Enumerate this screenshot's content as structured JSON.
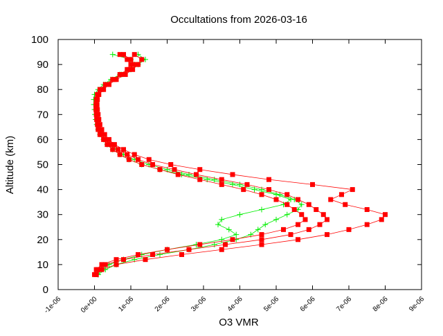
{
  "chart_data": {
    "type": "line",
    "title": "Occultations from 2026-03-16",
    "xlabel": "O3 VMR",
    "ylabel": "Altitude (km)",
    "xlim": [
      -1e-06,
      9e-06
    ],
    "ylim": [
      0,
      100
    ],
    "x_ticks": [
      "-1e-06",
      "0e+00",
      "1e-06",
      "2e-06",
      "3e-06",
      "4e-06",
      "5e-06",
      "6e-06",
      "7e-06",
      "8e-06",
      "9e-06"
    ],
    "y_ticks": [
      "0",
      "10",
      "20",
      "30",
      "40",
      "50",
      "60",
      "70",
      "80",
      "90",
      "100"
    ],
    "grid": false,
    "legend": "none",
    "x_unit_scale": 1e-06,
    "altitudes": [
      6,
      8,
      10,
      12,
      14,
      16,
      18,
      20,
      22,
      24,
      26,
      28,
      30,
      32,
      34,
      36,
      38,
      40,
      42,
      44,
      46,
      48,
      50,
      52,
      54,
      56,
      58,
      60,
      62,
      64,
      66,
      68,
      70,
      72,
      74,
      76,
      78,
      80,
      82,
      84,
      86,
      88,
      90,
      92,
      94
    ],
    "series": [
      {
        "color": "#00ee00",
        "marker": "plus",
        "profiles": [
          [
            0.1,
            0.2,
            0.4,
            0.8,
            1.3,
            2.0,
            2.8,
            3.5,
            3.9,
            3.7,
            3.4,
            3.5,
            4.0,
            4.6,
            5.2,
            5.4,
            5.0,
            4.4,
            3.8,
            3.1,
            2.4,
            1.8,
            1.3,
            0.95,
            0.7,
            0.5,
            0.35,
            0.25,
            0.15,
            0.1,
            0.06,
            0.03,
            0.01,
            0.0,
            -0.02,
            -0.02,
            0.0,
            0.1,
            0.25,
            0.45,
            0.7,
            1.0,
            1.2,
            1.4,
            1.2
          ],
          [
            0.1,
            0.3,
            0.6,
            1.1,
            1.8,
            2.6,
            3.3,
            3.9,
            4.3,
            4.5,
            4.7,
            5.0,
            5.3,
            5.6,
            5.7,
            5.5,
            5.1,
            4.6,
            4.0,
            3.3,
            2.6,
            2.0,
            1.5,
            1.1,
            0.8,
            0.6,
            0.42,
            0.3,
            0.2,
            0.14,
            0.1,
            0.07,
            0.05,
            0.03,
            0.02,
            0.03,
            0.06,
            0.15,
            0.3,
            0.5,
            0.75,
            0.95,
            1.1,
            1.0,
            0.5
          ]
        ]
      },
      {
        "color": "#ff0000",
        "marker": "square",
        "profiles": [
          [
            0.05,
            0.1,
            0.3,
            0.8,
            1.6,
            2.6,
            3.6,
            4.6,
            5.4,
            5.9,
            6.2,
            6.4,
            6.3,
            6.1,
            5.9,
            5.6,
            5.3,
            4.8,
            4.2,
            3.5,
            2.8,
            2.2,
            1.6,
            1.2,
            0.9,
            0.65,
            0.45,
            0.3,
            0.2,
            0.15,
            0.1,
            0.08,
            0.06,
            0.05,
            0.05,
            0.06,
            0.1,
            0.2,
            0.35,
            0.55,
            0.75,
            0.95,
            1.1,
            1.0,
            0.8
          ],
          [
            0.05,
            0.2,
            0.6,
            1.4,
            2.4,
            3.5,
            4.6,
            5.6,
            6.4,
            7.0,
            7.5,
            7.9,
            8.0,
            7.5,
            6.9,
            6.5,
            6.8,
            7.1,
            6.0,
            4.8,
            3.8,
            2.9,
            2.1,
            1.5,
            1.1,
            0.8,
            0.55,
            0.4,
            0.28,
            0.2,
            0.15,
            0.12,
            0.1,
            0.08,
            0.07,
            0.08,
            0.12,
            0.25,
            0.4,
            0.6,
            0.85,
            1.05,
            1.2,
            1.3,
            1.1
          ],
          [
            0.0,
            0.05,
            0.2,
            0.6,
            1.2,
            2.0,
            2.9,
            3.8,
            4.6,
            5.2,
            5.6,
            5.8,
            5.7,
            5.5,
            5.3,
            5.0,
            4.6,
            4.1,
            3.5,
            2.9,
            2.3,
            1.8,
            1.3,
            0.95,
            0.7,
            0.5,
            0.35,
            0.25,
            0.15,
            0.1,
            0.08,
            0.06,
            0.05,
            0.04,
            0.04,
            0.05,
            0.08,
            0.15,
            0.3,
            0.5,
            0.7,
            0.9,
            1.0,
            0.9,
            0.7
          ]
        ]
      }
    ]
  }
}
